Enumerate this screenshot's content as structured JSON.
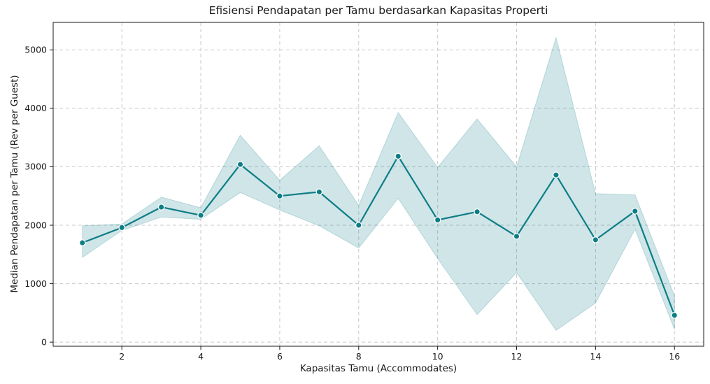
{
  "chart_data": {
    "type": "line",
    "title": "Efisiensi Pendapatan per Tamu berdasarkan Kapasitas Properti",
    "xlabel": "Kapasitas Tamu (Accommodates)",
    "ylabel": "Median Pendapatan per Tamu (Rev per Guest)",
    "x": [
      1,
      2,
      3,
      4,
      5,
      6,
      7,
      8,
      9,
      10,
      11,
      12,
      13,
      14,
      15,
      16
    ],
    "series": [
      {
        "name": "Median pendapatan per tamu",
        "values": [
          1700,
          1960,
          2310,
          2170,
          3040,
          2500,
          2570,
          2000,
          3180,
          2090,
          2230,
          1810,
          2860,
          1750,
          2240,
          460
        ]
      }
    ],
    "band": {
      "name": "confidence-band",
      "lower": [
        1450,
        1910,
        2140,
        2100,
        2560,
        2260,
        1990,
        1610,
        2460,
        1430,
        470,
        1190,
        200,
        670,
        1930,
        220
      ],
      "upper": [
        1990,
        2020,
        2480,
        2300,
        3540,
        2770,
        3360,
        2340,
        3930,
        2990,
        3820,
        3000,
        5210,
        2540,
        2520,
        790
      ]
    },
    "xticks": [
      2,
      4,
      6,
      8,
      10,
      12,
      14,
      16
    ],
    "yticks": [
      0,
      1000,
      2000,
      3000,
      4000,
      5000
    ],
    "xlim": [
      0.26,
      16.74
    ],
    "ylim": [
      -70,
      5470
    ],
    "grid": true,
    "legend_position": "none",
    "marker": "circle",
    "colors": {
      "line": "#0d7d86",
      "marker": "#0d7d86",
      "marker_edge": "#ffffff",
      "band": "#0d7d86",
      "band_opacity": 0.2,
      "grid": "#c9c9c9",
      "spine": "#1a1a1a",
      "text": "#1a1a1a",
      "background": "#ffffff"
    }
  }
}
